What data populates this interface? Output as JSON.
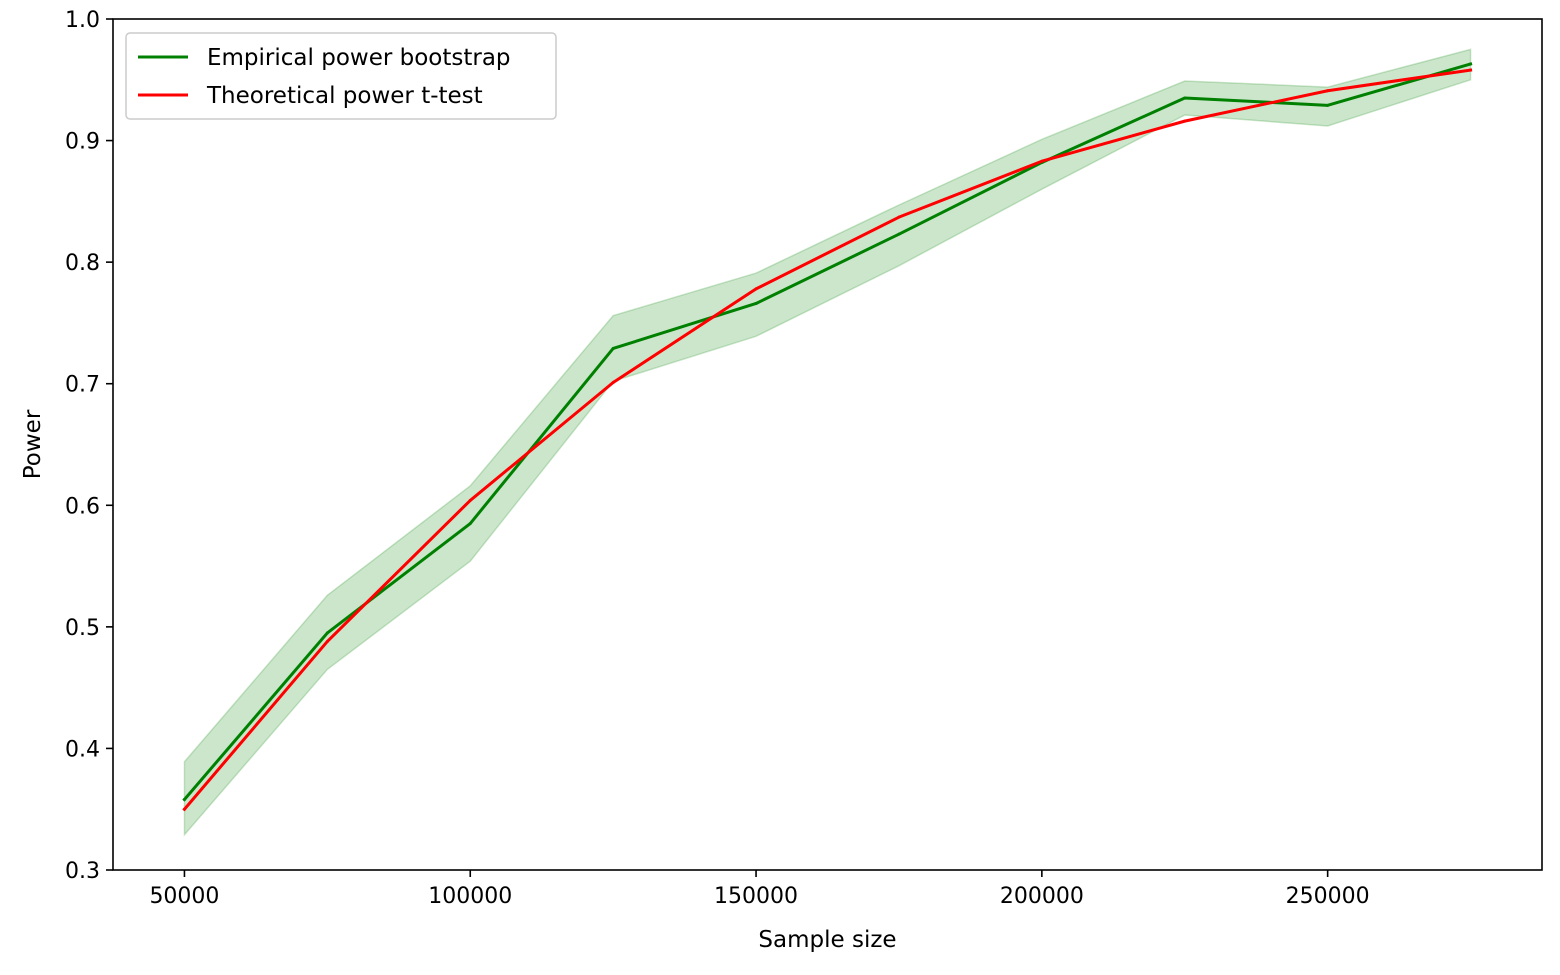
{
  "chart_data": {
    "type": "line",
    "title": "",
    "xlabel": "Sample size",
    "ylabel": "Power",
    "xlim": [
      37500,
      287500
    ],
    "ylim": [
      0.3,
      1.0
    ],
    "xticks": [
      50000,
      100000,
      150000,
      200000,
      250000
    ],
    "xtick_labels": [
      "50000",
      "100000",
      "150000",
      "200000",
      "250000"
    ],
    "yticks": [
      0.3,
      0.4,
      0.5,
      0.6,
      0.7,
      0.8,
      0.9,
      1.0
    ],
    "ytick_labels": [
      "0.3",
      "0.4",
      "0.5",
      "0.6",
      "0.7",
      "0.8",
      "0.9",
      "1.0"
    ],
    "grid": false,
    "legend_position": "top-left",
    "x": [
      50000,
      75000,
      100000,
      125000,
      150000,
      175000,
      200000,
      225000,
      250000,
      275000
    ],
    "series": [
      {
        "name": "Empirical power bootstrap",
        "color": "#008000",
        "values": [
          0.358,
          0.495,
          0.585,
          0.729,
          0.766,
          0.823,
          0.882,
          0.935,
          0.929,
          0.963
        ],
        "band_lower": [
          0.329,
          0.465,
          0.554,
          0.702,
          0.739,
          0.797,
          0.86,
          0.921,
          0.912,
          0.95
        ],
        "band_upper": [
          0.389,
          0.526,
          0.616,
          0.756,
          0.791,
          0.847,
          0.901,
          0.949,
          0.944,
          0.975
        ],
        "band_color": "#008000"
      },
      {
        "name": "Theoretical power t-test",
        "color": "#ff0000",
        "values": [
          0.35,
          0.488,
          0.604,
          0.701,
          0.778,
          0.837,
          0.883,
          0.916,
          0.941,
          0.958
        ]
      }
    ]
  }
}
